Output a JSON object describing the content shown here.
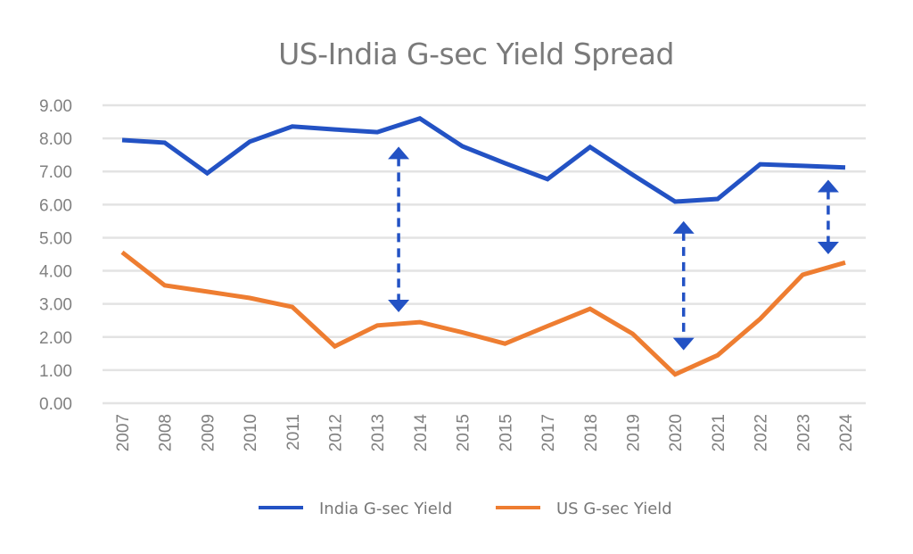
{
  "chart_data": {
    "type": "line",
    "title": "US-India G-sec Yield Spread",
    "xlabel": "",
    "ylabel": "",
    "ylim": [
      0,
      9
    ],
    "yticks": [
      "0.00",
      "1.00",
      "2.00",
      "3.00",
      "4.00",
      "5.00",
      "6.00",
      "7.00",
      "8.00",
      "9.00"
    ],
    "grid": true,
    "legend_position": "bottom",
    "categories": [
      "2007",
      "2008",
      "2009",
      "2010",
      "2011",
      "2012",
      "2013",
      "2014",
      "2015",
      "2015",
      "2017",
      "2018",
      "2019",
      "2020",
      "2021",
      "2022",
      "2023",
      "2024"
    ],
    "series": [
      {
        "name": "India G-sec Yield",
        "color": "#2352c4",
        "values": [
          7.95,
          7.87,
          6.95,
          7.9,
          8.36,
          8.27,
          8.19,
          8.6,
          7.76,
          7.25,
          6.77,
          7.74,
          6.9,
          6.09,
          6.17,
          7.22,
          7.17,
          7.12
        ]
      },
      {
        "name": "US G-sec Yield",
        "color": "#ee7d31",
        "values": [
          4.56,
          3.56,
          3.37,
          3.18,
          2.91,
          1.72,
          2.35,
          2.45,
          2.14,
          1.8,
          2.33,
          2.85,
          2.1,
          0.87,
          1.45,
          2.55,
          3.88,
          4.25
        ]
      }
    ],
    "annotations": [
      {
        "type": "double-arrow-dashed",
        "x_index": 6.5,
        "y_from": 2.75,
        "y_to": 7.75,
        "color": "#2352c4"
      },
      {
        "type": "double-arrow-dashed",
        "x_index": 13.2,
        "y_from": 1.6,
        "y_to": 5.5,
        "color": "#2352c4"
      },
      {
        "type": "double-arrow-dashed",
        "x_index": 16.6,
        "y_from": 4.5,
        "y_to": 6.75,
        "color": "#2352c4"
      }
    ]
  }
}
